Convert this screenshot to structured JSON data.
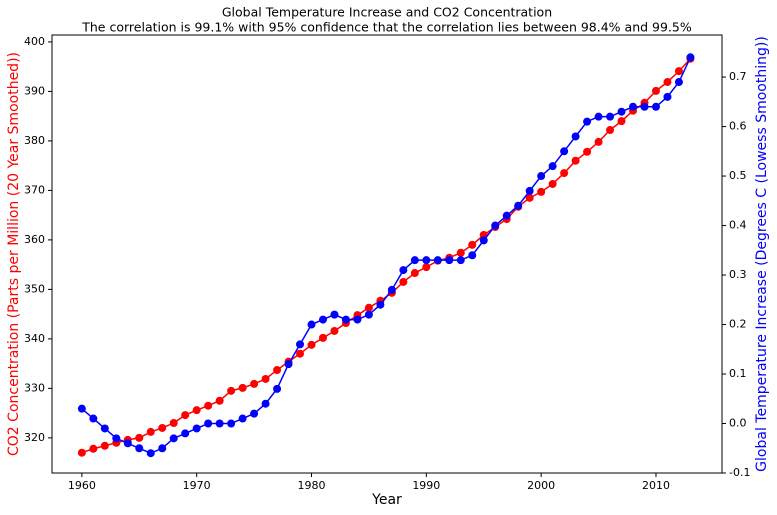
{
  "chart_data": {
    "type": "line",
    "title": "Global Temperature Increase and CO2 Concentration",
    "subtitle": "The correlation is 99.1% with 95% confidence that the correlation lies between 98.4% and 99.5%",
    "xlabel": "Year",
    "ylabel": "CO2 Concentration (Parts per Million (20 Year Smoothed))",
    "ylabel_color": "#ff0000",
    "y2label": "Global Temperature Increase (Degrees C (Lowess Smoothing))",
    "y2label_color": "#0000ff",
    "x": [
      1960,
      1961,
      1962,
      1963,
      1964,
      1965,
      1966,
      1967,
      1968,
      1969,
      1970,
      1971,
      1972,
      1973,
      1974,
      1975,
      1976,
      1977,
      1978,
      1979,
      1980,
      1981,
      1982,
      1983,
      1984,
      1985,
      1986,
      1987,
      1988,
      1989,
      1990,
      1991,
      1992,
      1993,
      1994,
      1995,
      1996,
      1997,
      1998,
      1999,
      2000,
      2001,
      2002,
      2003,
      2004,
      2005,
      2006,
      2007,
      2008,
      2009,
      2010,
      2011,
      2012,
      2013
    ],
    "series": [
      {
        "color": "#ff0000",
        "axis": "y",
        "values": [
          317.0,
          317.8,
          318.4,
          319.0,
          319.6,
          320.0,
          321.2,
          322.0,
          323.0,
          324.6,
          325.6,
          326.5,
          327.5,
          329.5,
          330.1,
          330.9,
          331.9,
          333.7,
          335.4,
          337.0,
          338.8,
          340.2,
          341.6,
          343.2,
          344.8,
          346.3,
          347.7,
          349.3,
          351.5,
          353.3,
          354.5,
          355.8,
          356.4,
          357.4,
          359.0,
          361.0,
          362.6,
          364.2,
          366.7,
          368.5,
          369.7,
          371.3,
          373.5,
          376.0,
          377.8,
          379.8,
          382.2,
          384.0,
          386.1,
          387.7,
          390.1,
          391.9,
          394.1,
          396.6
        ]
      },
      {
        "color": "#0000ff",
        "axis": "y2",
        "values": [
          0.03,
          0.01,
          -0.01,
          -0.03,
          -0.04,
          -0.05,
          -0.06,
          -0.05,
          -0.03,
          -0.02,
          -0.01,
          0.0,
          0.0,
          0.0,
          0.01,
          0.02,
          0.04,
          0.07,
          0.12,
          0.16,
          0.2,
          0.21,
          0.22,
          0.21,
          0.21,
          0.22,
          0.24,
          0.27,
          0.31,
          0.33,
          0.33,
          0.33,
          0.33,
          0.33,
          0.34,
          0.37,
          0.4,
          0.42,
          0.44,
          0.47,
          0.5,
          0.52,
          0.55,
          0.58,
          0.61,
          0.62,
          0.62,
          0.63,
          0.64,
          0.64,
          0.64,
          0.66,
          0.69,
          0.74
        ]
      }
    ],
    "xlim": [
      1957.4,
      2015.75
    ],
    "xticks": [
      1960,
      1970,
      1980,
      1990,
      2000,
      2010
    ],
    "ylim": [
      312.9,
      401.4
    ],
    "yticks": [
      320,
      330,
      340,
      350,
      360,
      370,
      380,
      390,
      400
    ],
    "y2lim": [
      -0.1,
      0.785
    ],
    "y2ticks": [
      -0.1,
      {
        "value": 0,
        "label": "0.0"
      },
      0.1,
      0.2,
      0.3,
      0.4,
      0.5,
      0.6,
      0.7
    ]
  }
}
